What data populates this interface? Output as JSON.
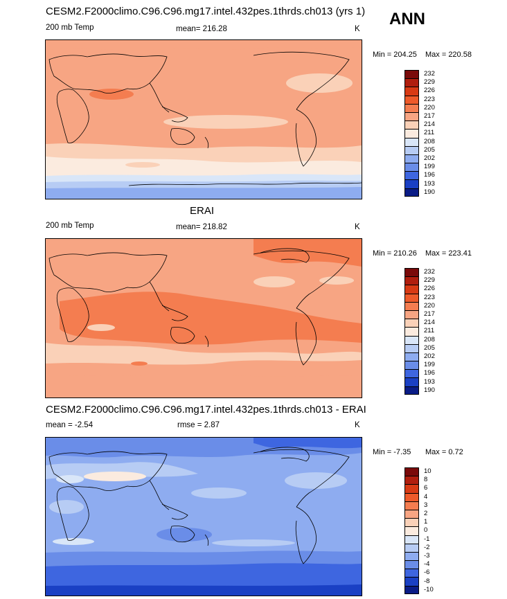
{
  "season": "ANN",
  "panels": [
    {
      "title": "CESM2.F2000climo.C96.C96.mg17.intel.432pes.1thrds.ch013 (yrs 1)",
      "left_label": "200 mb Temp",
      "center_label": "mean= 216.28",
      "units": "K",
      "min_label": "Min = 204.25",
      "max_label": "Max = 220.58",
      "colorbar_ticks": [
        "232",
        "229",
        "226",
        "223",
        "220",
        "217",
        "214",
        "211",
        "208",
        "205",
        "202",
        "199",
        "196",
        "193",
        "190"
      ]
    },
    {
      "title": "ERAI",
      "left_label": "200 mb Temp",
      "center_label": "mean= 218.82",
      "units": "K",
      "min_label": "Min = 210.26",
      "max_label": "Max = 223.41",
      "colorbar_ticks": [
        "232",
        "229",
        "226",
        "223",
        "220",
        "217",
        "214",
        "211",
        "208",
        "205",
        "202",
        "199",
        "196",
        "193",
        "190"
      ]
    },
    {
      "title": "CESM2.F2000climo.C96.C96.mg17.intel.432pes.1thrds.ch013 - ERAI",
      "left_label": "mean =  -2.54",
      "center_label": "rmse =   2.87",
      "units": "K",
      "min_label": "Min =  -7.35",
      "max_label": "Max =   0.72",
      "colorbar_ticks": [
        "10",
        "8",
        "6",
        "4",
        "3",
        "2",
        "1",
        "0",
        "-1",
        "-2",
        "-3",
        "-4",
        "-6",
        "-8",
        "-10"
      ]
    }
  ],
  "colors": {
    "scale": [
      "#7a0a0a",
      "#b01e0e",
      "#d83a14",
      "#ee5a2a",
      "#f47d50",
      "#f7a583",
      "#fad1b8",
      "#fbebdf",
      "#d9e6f8",
      "#b7ccf4",
      "#8eacf0",
      "#6a8de8",
      "#3e66e0",
      "#1a40c4",
      "#0a1c86"
    ]
  }
}
